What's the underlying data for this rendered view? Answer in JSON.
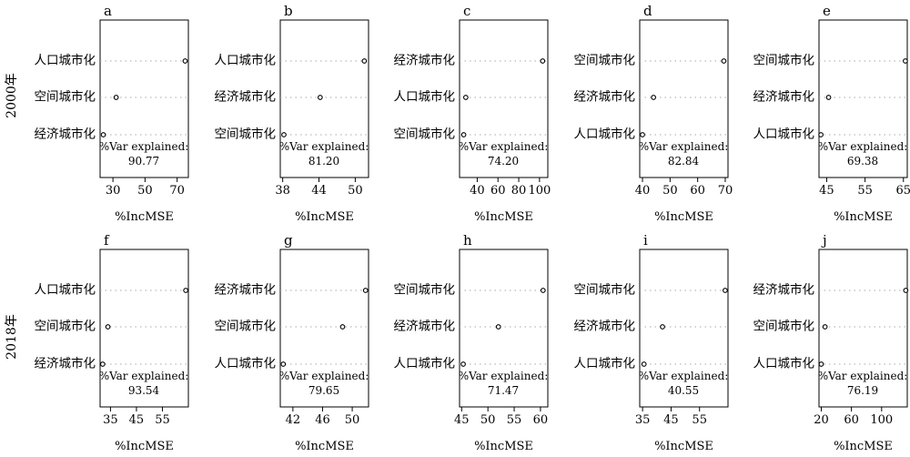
{
  "row_labels": [
    "2000年",
    "2018年"
  ],
  "chart_data": [
    {
      "type": "scatter",
      "panel": "a",
      "row": 0,
      "col": 0,
      "categories": [
        "人口城市化",
        "空间城市化",
        "经济城市化"
      ],
      "values": [
        75,
        32,
        24
      ],
      "xlim": [
        22,
        77
      ],
      "ticks": [
        30,
        50,
        70
      ],
      "xlabel": "%IncMSE",
      "var_explained_label": "%Var explained:",
      "var_explained": "90.77"
    },
    {
      "type": "scatter",
      "panel": "b",
      "row": 0,
      "col": 1,
      "categories": [
        "人口城市化",
        "经济城市化",
        "空间城市化"
      ],
      "values": [
        51.5,
        44.2,
        38.2
      ],
      "xlim": [
        37.6,
        52.2
      ],
      "ticks": [
        38,
        44,
        50
      ],
      "xlabel": "%IncMSE",
      "var_explained_label": "%Var explained:",
      "var_explained": "81.20"
    },
    {
      "type": "scatter",
      "panel": "c",
      "row": 0,
      "col": 2,
      "categories": [
        "经济城市化",
        "人口城市化",
        "空间城市化"
      ],
      "values": [
        103,
        29,
        27
      ],
      "xlim": [
        23,
        108
      ],
      "ticks": [
        40,
        60,
        80,
        100
      ],
      "xlabel": "%IncMSE",
      "var_explained_label": "%Var explained:",
      "var_explained": "74.20"
    },
    {
      "type": "scatter",
      "panel": "d",
      "row": 0,
      "col": 3,
      "categories": [
        "空间城市化",
        "经济城市化",
        "人口城市化"
      ],
      "values": [
        69.5,
        44,
        40
      ],
      "xlim": [
        39,
        71
      ],
      "ticks": [
        40,
        50,
        60,
        70
      ],
      "xlabel": "%IncMSE",
      "var_explained_label": "%Var explained:",
      "var_explained": "82.84"
    },
    {
      "type": "scatter",
      "panel": "e",
      "row": 0,
      "col": 4,
      "categories": [
        "空间城市化",
        "经济城市化",
        "人口城市化"
      ],
      "values": [
        65.5,
        45.5,
        43.5
      ],
      "xlim": [
        43,
        66
      ],
      "ticks": [
        45,
        55,
        65
      ],
      "xlabel": "%IncMSE",
      "var_explained_label": "%Var explained:",
      "var_explained": "69.38"
    },
    {
      "type": "scatter",
      "panel": "f",
      "row": 1,
      "col": 0,
      "categories": [
        "人口城市化",
        "空间城市化",
        "经济城市化"
      ],
      "values": [
        64,
        34,
        32
      ],
      "xlim": [
        31,
        65
      ],
      "ticks": [
        35,
        45,
        55
      ],
      "xlabel": "%IncMSE",
      "var_explained_label": "%Var explained:",
      "var_explained": "93.54"
    },
    {
      "type": "scatter",
      "panel": "g",
      "row": 1,
      "col": 1,
      "categories": [
        "经济城市化",
        "空间城市化",
        "人口城市化"
      ],
      "values": [
        51.8,
        48.7,
        40.7
      ],
      "xlim": [
        40.3,
        52.2
      ],
      "ticks": [
        42,
        46,
        50
      ],
      "xlabel": "%IncMSE",
      "var_explained_label": "%Var explained:",
      "var_explained": "79.65"
    },
    {
      "type": "scatter",
      "panel": "h",
      "row": 1,
      "col": 2,
      "categories": [
        "空间城市化",
        "经济城市化",
        "人口城市化"
      ],
      "values": [
        60.5,
        52,
        45.3
      ],
      "xlim": [
        44.6,
        61.4
      ],
      "ticks": [
        45,
        50,
        55,
        60
      ],
      "xlabel": "%IncMSE",
      "var_explained_label": "%Var explained:",
      "var_explained": "71.47"
    },
    {
      "type": "scatter",
      "panel": "i",
      "row": 1,
      "col": 3,
      "categories": [
        "空间城市化",
        "经济城市化",
        "人口城市化"
      ],
      "values": [
        64,
        42,
        35.5
      ],
      "xlim": [
        34,
        65
      ],
      "ticks": [
        35,
        45,
        55
      ],
      "xlabel": "%IncMSE",
      "var_explained_label": "%Var explained:",
      "var_explained": "40.55"
    },
    {
      "type": "scatter",
      "panel": "j",
      "row": 1,
      "col": 4,
      "categories": [
        "经济城市化",
        "空间城市化",
        "人口城市化"
      ],
      "values": [
        132,
        25,
        20
      ],
      "xlim": [
        17,
        134
      ],
      "ticks": [
        20,
        60,
        100
      ],
      "xlabel": "%IncMSE",
      "var_explained_label": "%Var explained:",
      "var_explained": "76.19"
    }
  ]
}
